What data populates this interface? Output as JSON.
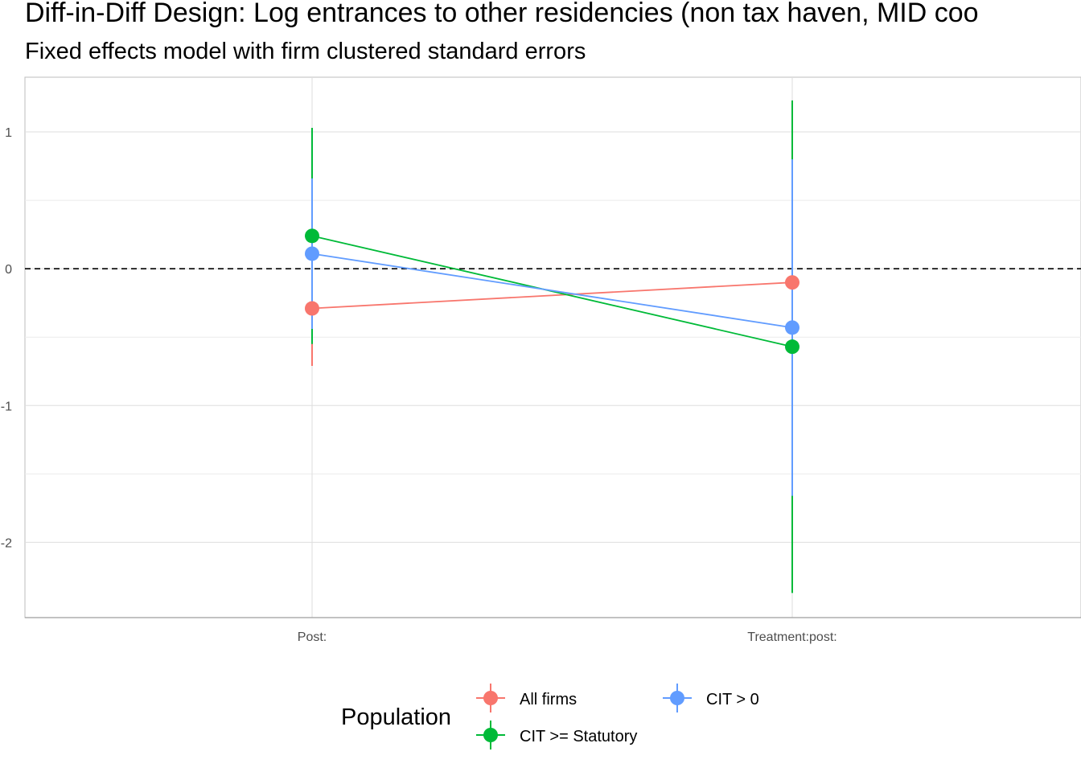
{
  "title": "Diff-in-Diff Design: Log entrances to other residencies (non tax haven, MID coo",
  "subtitle": "Fixed effects model with firm clustered standard errors",
  "chart_data": {
    "type": "line",
    "title": "Diff-in-Diff Design: Log entrances to other residencies (non tax haven, MID coo",
    "subtitle": "Fixed effects model with firm clustered standard errors",
    "xlabel": "",
    "ylabel": "",
    "categories": [
      "Post:",
      "Treatment:post:"
    ],
    "ylim": [
      -2.55,
      1.4
    ],
    "yticks": [
      -2,
      -1,
      0,
      1
    ],
    "grid": true,
    "reference_line": {
      "y": 0,
      "style": "dashed"
    },
    "legend": {
      "title": "Population",
      "placement": "bottom"
    },
    "series": [
      {
        "name": "All firms",
        "color": "#F8766D",
        "values": [
          -0.29,
          -0.1
        ],
        "lower": [
          -0.71,
          -0.57
        ],
        "upper": [
          0.13,
          0.37
        ]
      },
      {
        "name": "CIT >= Statutory",
        "color": "#00BA38",
        "values": [
          0.24,
          -0.57
        ],
        "lower": [
          -0.55,
          -2.37
        ],
        "upper": [
          1.03,
          1.23
        ]
      },
      {
        "name": "CIT > 0",
        "color": "#619CFF",
        "values": [
          0.11,
          -0.43
        ],
        "lower": [
          -0.44,
          -1.66
        ],
        "upper": [
          0.66,
          0.8
        ]
      }
    ]
  }
}
